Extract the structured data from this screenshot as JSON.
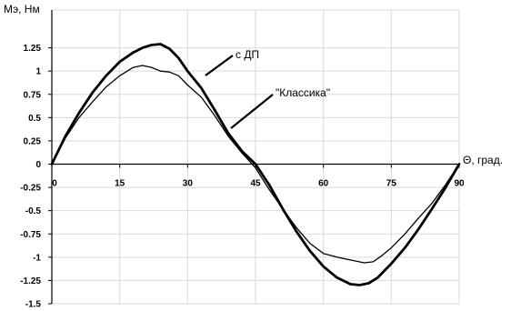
{
  "chart_data": {
    "type": "line",
    "xlabel": "Θ, град.",
    "ylabel": "Mэ, Нм",
    "xlim": [
      0,
      90
    ],
    "ylim": [
      -1.5,
      1.5
    ],
    "x_ticks": [
      0,
      15,
      30,
      45,
      60,
      75,
      90
    ],
    "x_tick_labels": [
      "0",
      "15",
      "30",
      "45",
      "60",
      "75",
      "90"
    ],
    "y_ticks": [
      1.25,
      1,
      0.75,
      0.5,
      0.25,
      0,
      -0.25,
      -0.5,
      -0.75,
      -1,
      -1.25,
      -1.5
    ],
    "y_tick_labels": [
      "1.25",
      "1",
      "0.75",
      "0.5",
      "0.25",
      "0",
      "-0.25",
      "-0.5",
      "-0.75",
      "-1",
      "-1.25",
      "-1.5"
    ],
    "grid": true,
    "series": [
      {
        "name": "с ДП",
        "color": "#000000",
        "points": [
          [
            0,
            0
          ],
          [
            3,
            0.3
          ],
          [
            6,
            0.55
          ],
          [
            9,
            0.77
          ],
          [
            12,
            0.95
          ],
          [
            15,
            1.1
          ],
          [
            18,
            1.2
          ],
          [
            20,
            1.25
          ],
          [
            22,
            1.28
          ],
          [
            24,
            1.29
          ],
          [
            26,
            1.24
          ],
          [
            28,
            1.14
          ],
          [
            30,
            1.0
          ],
          [
            33,
            0.82
          ],
          [
            36,
            0.58
          ],
          [
            39,
            0.33
          ],
          [
            42,
            0.14
          ],
          [
            45,
            0.0
          ],
          [
            48,
            -0.22
          ],
          [
            51,
            -0.48
          ],
          [
            54,
            -0.72
          ],
          [
            57,
            -0.93
          ],
          [
            60,
            -1.1
          ],
          [
            63,
            -1.22
          ],
          [
            66,
            -1.29
          ],
          [
            68,
            -1.3
          ],
          [
            70,
            -1.28
          ],
          [
            72,
            -1.22
          ],
          [
            75,
            -1.07
          ],
          [
            78,
            -0.9
          ],
          [
            81,
            -0.7
          ],
          [
            84,
            -0.48
          ],
          [
            87,
            -0.25
          ],
          [
            90,
            0.0
          ]
        ]
      },
      {
        "name": "\"Классика\"",
        "color": "#000000",
        "points": [
          [
            0,
            0
          ],
          [
            3,
            0.28
          ],
          [
            6,
            0.5
          ],
          [
            9,
            0.67
          ],
          [
            12,
            0.83
          ],
          [
            15,
            0.95
          ],
          [
            18,
            1.04
          ],
          [
            20,
            1.06
          ],
          [
            22,
            1.04
          ],
          [
            24,
            1.0
          ],
          [
            26,
            0.99
          ],
          [
            28,
            0.95
          ],
          [
            30,
            0.85
          ],
          [
            33,
            0.72
          ],
          [
            36,
            0.52
          ],
          [
            39,
            0.3
          ],
          [
            42,
            0.12
          ],
          [
            45,
            -0.04
          ],
          [
            48,
            -0.27
          ],
          [
            51,
            -0.48
          ],
          [
            54,
            -0.68
          ],
          [
            57,
            -0.85
          ],
          [
            60,
            -0.96
          ],
          [
            63,
            -1.0
          ],
          [
            66,
            -1.03
          ],
          [
            69,
            -1.06
          ],
          [
            71,
            -1.05
          ],
          [
            73,
            -0.98
          ],
          [
            75,
            -0.9
          ],
          [
            78,
            -0.75
          ],
          [
            81,
            -0.58
          ],
          [
            84,
            -0.42
          ],
          [
            87,
            -0.22
          ],
          [
            90,
            0.0
          ]
        ]
      }
    ],
    "annotations": [
      {
        "text": "с ДП",
        "series": 0
      },
      {
        "text": "\"Классика\"",
        "series": 1
      }
    ]
  }
}
